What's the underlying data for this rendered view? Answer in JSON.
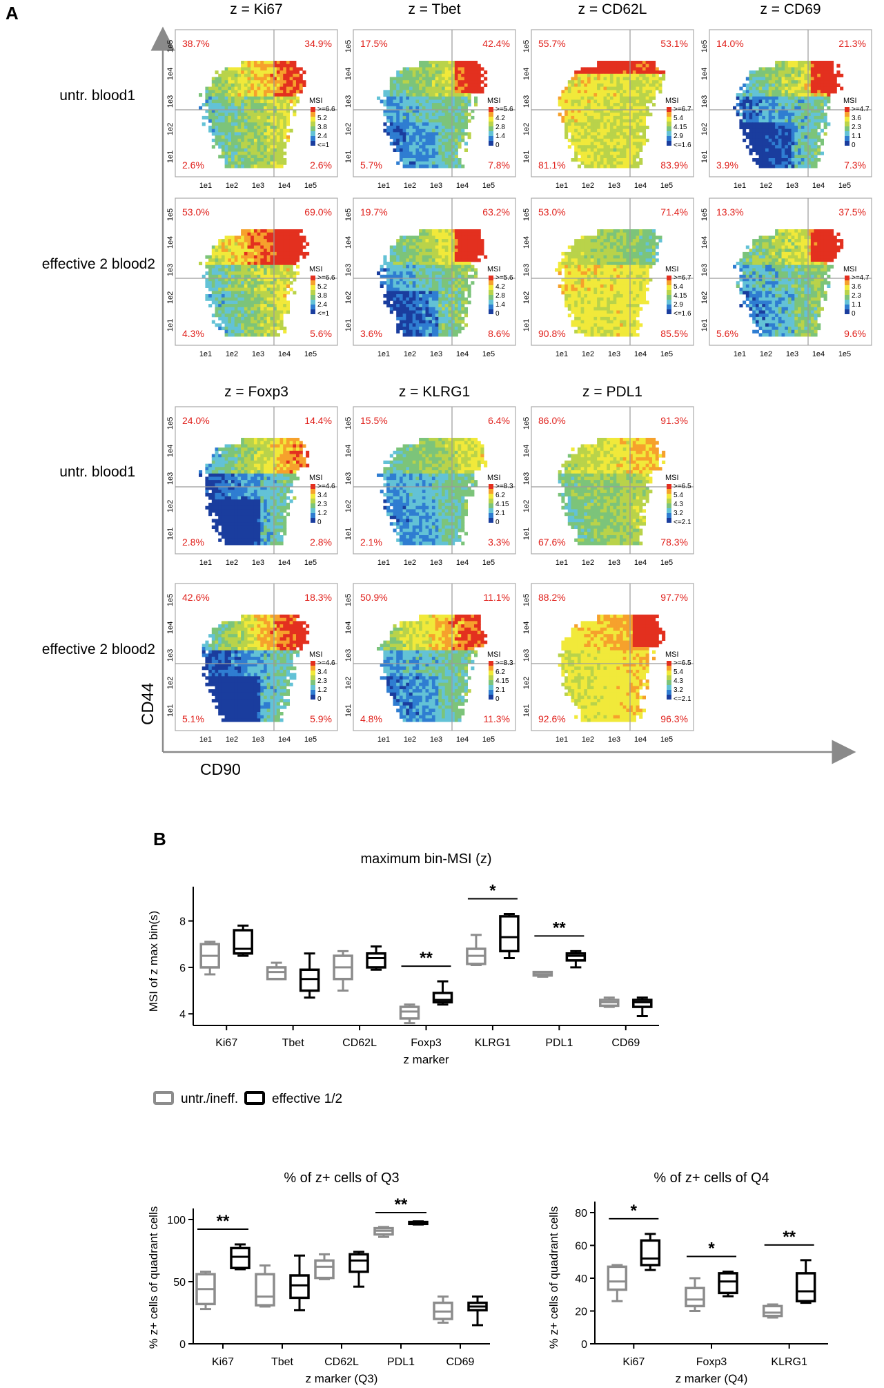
{
  "panel_a": {
    "letter": "A",
    "x_axis_label": "CD90",
    "y_axis_label": "CD44",
    "ticks": [
      "1e1",
      "1e2",
      "1e3",
      "1e4",
      "1e5"
    ],
    "legend_title": "MSI",
    "rows": [
      {
        "label": "untr. blood1"
      },
      {
        "label": "effective 2 blood2"
      },
      {
        "label": "untr. blood1"
      },
      {
        "label": "effective 2 blood2"
      }
    ],
    "column_titles": [
      [
        "z = Ki67",
        "z = Tbet",
        "z = CD62L",
        "z = CD69"
      ],
      [
        "z = Foxp3",
        "z = KLRG1",
        "z = PDL1"
      ]
    ],
    "plots": [
      [
        {
          "q": [
            "38.7%",
            "34.9%",
            "2.6%",
            "2.6%"
          ],
          "legend": [
            ">=6.6",
            "5.2",
            "3.8",
            "2.4",
            "<=1"
          ],
          "theme": "ki67u"
        },
        {
          "q": [
            "17.5%",
            "42.4%",
            "5.7%",
            "7.8%"
          ],
          "legend": [
            ">=5.6",
            "4.2",
            "2.8",
            "1.4",
            "0"
          ],
          "theme": "tbetu"
        },
        {
          "q": [
            "55.7%",
            "53.1%",
            "81.1%",
            "83.9%"
          ],
          "legend": [
            ">=6.7",
            "5.4",
            "4.15",
            "2.9",
            "<=1.6"
          ],
          "theme": "cd62u"
        },
        {
          "q": [
            "14.0%",
            "21.3%",
            "3.9%",
            "7.3%"
          ],
          "legend": [
            ">=4.7",
            "3.6",
            "2.3",
            "1.1",
            "0"
          ],
          "theme": "cd69u"
        }
      ],
      [
        {
          "q": [
            "53.0%",
            "69.0%",
            "4.3%",
            "5.6%"
          ],
          "legend": [
            ">=6.6",
            "5.2",
            "3.8",
            "2.4",
            "<=1"
          ],
          "theme": "ki67e"
        },
        {
          "q": [
            "19.7%",
            "63.2%",
            "3.6%",
            "8.6%"
          ],
          "legend": [
            ">=5.6",
            "4.2",
            "2.8",
            "1.4",
            "0"
          ],
          "theme": "tbete"
        },
        {
          "q": [
            "53.0%",
            "71.4%",
            "90.8%",
            "85.5%"
          ],
          "legend": [
            ">=6.7",
            "5.4",
            "4.15",
            "2.9",
            "<=1.6"
          ],
          "theme": "cd62e"
        },
        {
          "q": [
            "13.3%",
            "37.5%",
            "5.6%",
            "9.6%"
          ],
          "legend": [
            ">=4.7",
            "3.6",
            "2.3",
            "1.1",
            "0"
          ],
          "theme": "cd69e"
        }
      ],
      [
        {
          "q": [
            "24.0%",
            "14.4%",
            "2.8%",
            "2.8%"
          ],
          "legend": [
            ">=4.6",
            "3.4",
            "2.3",
            "1.2",
            "0"
          ],
          "theme": "foxu"
        },
        {
          "q": [
            "15.5%",
            "6.4%",
            "2.1%",
            "3.3%"
          ],
          "legend": [
            ">=8.3",
            "6.2",
            "4.15",
            "2.1",
            "0"
          ],
          "theme": "klrgu"
        },
        {
          "q": [
            "86.0%",
            "91.3%",
            "67.6%",
            "78.3%"
          ],
          "legend": [
            ">=6.5",
            "5.4",
            "4.3",
            "3.2",
            "<=2.1"
          ],
          "theme": "pdlu"
        }
      ],
      [
        {
          "q": [
            "42.6%",
            "18.3%",
            "5.1%",
            "5.9%"
          ],
          "legend": [
            ">=4.6",
            "3.4",
            "2.3",
            "1.2",
            "0"
          ],
          "theme": "foxe"
        },
        {
          "q": [
            "50.9%",
            "11.1%",
            "4.8%",
            "11.3%"
          ],
          "legend": [
            ">=8.3",
            "6.2",
            "4.15",
            "2.1",
            "0"
          ],
          "theme": "klrge"
        },
        {
          "q": [
            "88.2%",
            "97.7%",
            "92.6%",
            "96.3%"
          ],
          "legend": [
            ">=6.5",
            "5.4",
            "4.3",
            "3.2",
            "<=2.1"
          ],
          "theme": "pdle"
        }
      ]
    ]
  },
  "panel_b": {
    "letter": "B",
    "legend": {
      "untreated": "untr./ineff.",
      "effective": "effective 1/2"
    },
    "colors": {
      "untreated": "#8c8c8c",
      "effective": "#000000",
      "annotation": "#e0201b"
    }
  },
  "chart_data": [
    {
      "type": "box",
      "title": "maximum bin-MSI (z)",
      "xlabel": "z marker",
      "ylabel": "MSI of z max bin(s)",
      "ylim": [
        3.5,
        9
      ],
      "yticks": [
        4,
        6,
        8
      ],
      "categories": [
        "Ki67",
        "Tbet",
        "CD62L",
        "Foxp3",
        "KLRG1",
        "PDL1",
        "CD69"
      ],
      "series": [
        {
          "name": "untr./ineff.",
          "boxes": [
            {
              "min": 5.7,
              "q1": 6.0,
              "median": 6.5,
              "q3": 7.0,
              "max": 7.1
            },
            {
              "min": 5.5,
              "q1": 5.5,
              "median": 5.8,
              "q3": 6.0,
              "max": 6.2
            },
            {
              "min": 5.0,
              "q1": 5.5,
              "median": 6.0,
              "q3": 6.5,
              "max": 6.7
            },
            {
              "min": 3.6,
              "q1": 3.8,
              "median": 4.1,
              "q3": 4.3,
              "max": 4.4
            },
            {
              "min": 6.1,
              "q1": 6.15,
              "median": 6.5,
              "q3": 6.8,
              "max": 7.4
            },
            {
              "min": 5.6,
              "q1": 5.65,
              "median": 5.7,
              "q3": 5.8,
              "max": 5.8
            },
            {
              "min": 4.3,
              "q1": 4.35,
              "median": 4.5,
              "q3": 4.6,
              "max": 4.7
            }
          ]
        },
        {
          "name": "effective 1/2",
          "boxes": [
            {
              "min": 6.5,
              "q1": 6.6,
              "median": 6.8,
              "q3": 7.6,
              "max": 7.8
            },
            {
              "min": 4.7,
              "q1": 5.0,
              "median": 5.5,
              "q3": 5.9,
              "max": 6.6
            },
            {
              "min": 5.9,
              "q1": 6.0,
              "median": 6.4,
              "q3": 6.6,
              "max": 6.9
            },
            {
              "min": 4.4,
              "q1": 4.5,
              "median": 4.6,
              "q3": 4.9,
              "max": 5.4
            },
            {
              "min": 6.4,
              "q1": 6.7,
              "median": 7.3,
              "q3": 8.2,
              "max": 8.3
            },
            {
              "min": 6.0,
              "q1": 6.3,
              "median": 6.5,
              "q3": 6.6,
              "max": 6.7
            },
            {
              "min": 3.9,
              "q1": 4.3,
              "median": 4.5,
              "q3": 4.6,
              "max": 4.7
            }
          ]
        }
      ],
      "significance": [
        {
          "category": "Foxp3",
          "label": "**"
        },
        {
          "category": "KLRG1",
          "label": "*"
        },
        {
          "category": "PDL1",
          "label": "**"
        }
      ]
    },
    {
      "type": "box",
      "title": "% of z+ cells of Q3",
      "xlabel": "z marker (Q3)",
      "ylabel": "% z+ cells of quadrant cells",
      "ylim": [
        0,
        100
      ],
      "yticks": [
        0,
        50,
        100
      ],
      "categories": [
        "Ki67",
        "Tbet",
        "CD62L",
        "PDL1",
        "CD69"
      ],
      "series": [
        {
          "name": "untr./ineff.",
          "boxes": [
            {
              "min": 28,
              "q1": 32,
              "median": 44,
              "q3": 56,
              "max": 58
            },
            {
              "min": 30,
              "q1": 31,
              "median": 38,
              "q3": 56,
              "max": 63
            },
            {
              "min": 52,
              "q1": 53,
              "median": 62,
              "q3": 67,
              "max": 72
            },
            {
              "min": 86,
              "q1": 88,
              "median": 91,
              "q3": 93,
              "max": 94
            },
            {
              "min": 17,
              "q1": 20,
              "median": 26,
              "q3": 33,
              "max": 38
            }
          ]
        },
        {
          "name": "effective 1/2",
          "boxes": [
            {
              "min": 60,
              "q1": 61,
              "median": 70,
              "q3": 77,
              "max": 80
            },
            {
              "min": 27,
              "q1": 37,
              "median": 47,
              "q3": 55,
              "max": 71
            },
            {
              "min": 46,
              "q1": 58,
              "median": 67,
              "q3": 72,
              "max": 74
            },
            {
              "min": 96,
              "q1": 96.5,
              "median": 97.5,
              "q3": 98,
              "max": 98.5
            },
            {
              "min": 15,
              "q1": 27,
              "median": 30,
              "q3": 33,
              "max": 38
            }
          ]
        }
      ],
      "significance": [
        {
          "category": "Ki67",
          "label": "**"
        },
        {
          "category": "PDL1",
          "label": "**"
        }
      ]
    },
    {
      "type": "box",
      "title": "% of z+ cells of Q4",
      "xlabel": "z marker (Q4)",
      "ylabel": "% z+ cells of quadrant cells",
      "ylim": [
        0,
        80
      ],
      "yticks": [
        0,
        20,
        40,
        60,
        80
      ],
      "categories": [
        "Ki67",
        "Foxp3",
        "KLRG1"
      ],
      "series": [
        {
          "name": "untr./ineff.",
          "boxes": [
            {
              "min": 26,
              "q1": 33,
              "median": 38,
              "q3": 47,
              "max": 48
            },
            {
              "min": 20,
              "q1": 23,
              "median": 27,
              "q3": 34,
              "max": 40
            },
            {
              "min": 16,
              "q1": 17,
              "median": 19,
              "q3": 23,
              "max": 24
            }
          ]
        },
        {
          "name": "effective 1/2",
          "boxes": [
            {
              "min": 45,
              "q1": 48,
              "median": 52,
              "q3": 63,
              "max": 67
            },
            {
              "min": 29,
              "q1": 31,
              "median": 38,
              "q3": 43,
              "max": 44
            },
            {
              "min": 25,
              "q1": 26,
              "median": 32,
              "q3": 43,
              "max": 51
            }
          ]
        }
      ],
      "significance": [
        {
          "category": "Ki67",
          "label": "*"
        },
        {
          "category": "Foxp3",
          "label": "*"
        },
        {
          "category": "KLRG1",
          "label": "**"
        }
      ]
    }
  ]
}
